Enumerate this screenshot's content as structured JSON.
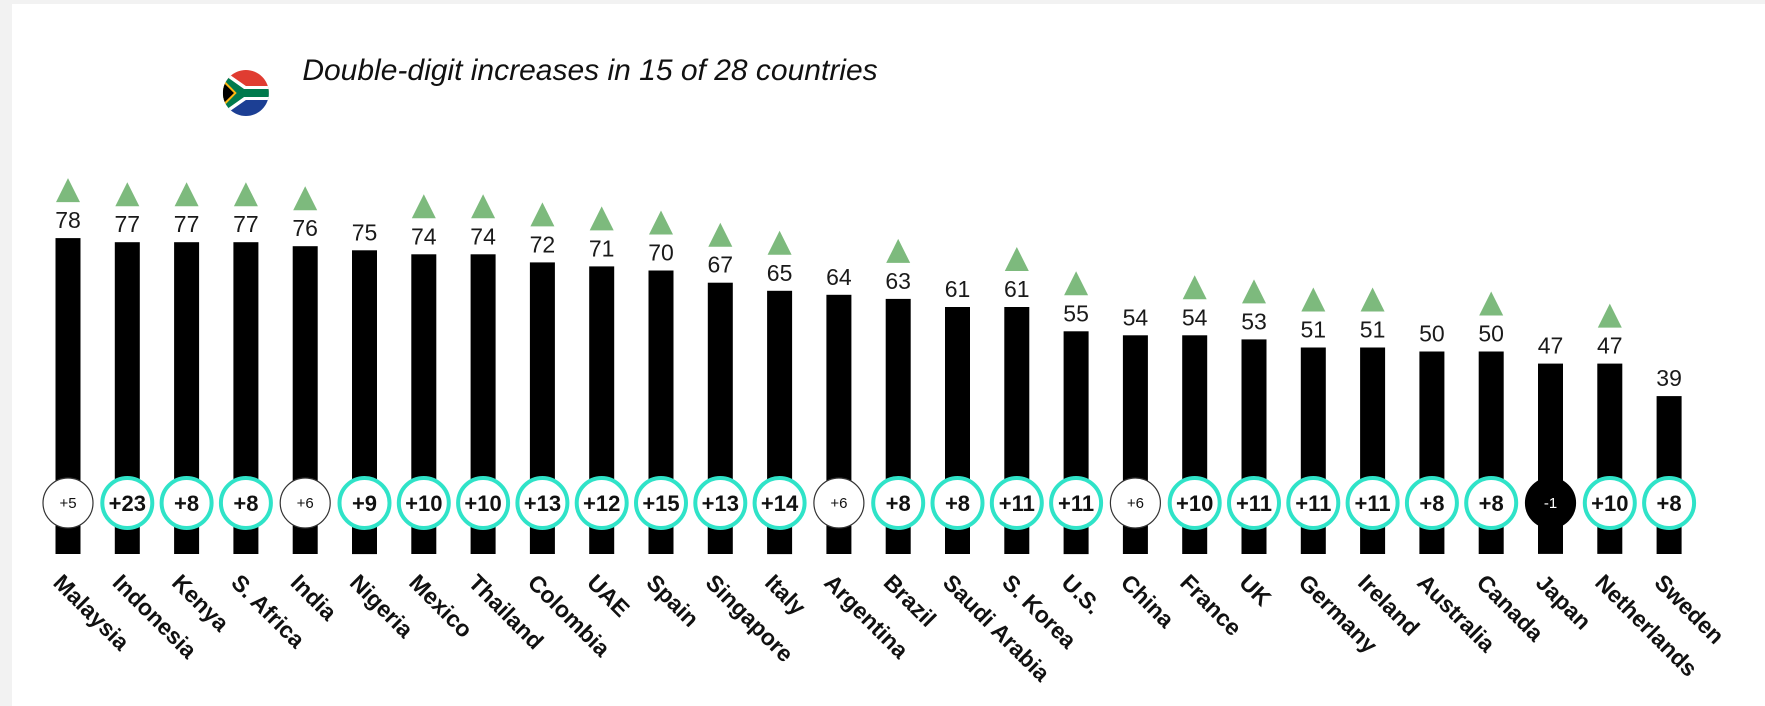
{
  "chart_data": {
    "type": "bar",
    "title": "Double-digit increases in 15 of 28 countries",
    "xlabel": "",
    "ylabel": "",
    "ylim": [
      0,
      90
    ],
    "grid": false,
    "legend": "none",
    "categories": [
      "Malaysia",
      "Indonesia",
      "Kenya",
      "S. Africa",
      "India",
      "Nigeria",
      "Mexico",
      "Thailand",
      "Colombia",
      "UAE",
      "Spain",
      "Singapore",
      "Italy",
      "Argentina",
      "Brazil",
      "Saudi Arabia",
      "S. Korea",
      "U.S.",
      "China",
      "France",
      "UK",
      "Germany",
      "Ireland",
      "Australia",
      "Canada",
      "Japan",
      "Netherlands",
      "Sweden"
    ],
    "values": [
      78,
      77,
      77,
      77,
      76,
      75,
      74,
      74,
      72,
      71,
      70,
      67,
      65,
      64,
      63,
      61,
      61,
      55,
      54,
      54,
      53,
      51,
      51,
      50,
      50,
      47,
      47,
      39
    ],
    "changes": [
      "+5",
      "+23",
      "+8",
      "+8",
      "+6",
      "+9",
      "+10",
      "+10",
      "+13",
      "+12",
      "+15",
      "+13",
      "+14",
      "+6",
      "+8",
      "+8",
      "+11",
      "+11",
      "+6",
      "+10",
      "+11",
      "+11",
      "+11",
      "+8",
      "+8",
      "-1",
      "+10",
      "+8"
    ],
    "significant_increase": [
      true,
      true,
      true,
      true,
      true,
      false,
      true,
      true,
      true,
      true,
      true,
      true,
      true,
      false,
      true,
      false,
      true,
      true,
      false,
      true,
      true,
      true,
      true,
      false,
      true,
      false,
      true,
      false
    ],
    "change_style": [
      "plain",
      "significant",
      "significant",
      "significant",
      "plain",
      "significant",
      "significant",
      "significant",
      "significant",
      "significant",
      "significant",
      "significant",
      "significant",
      "plain",
      "significant",
      "significant",
      "significant",
      "significant",
      "plain",
      "significant",
      "significant",
      "significant",
      "significant",
      "significant",
      "significant",
      "decline",
      "significant",
      "significant"
    ],
    "highlight": {
      "category": "S. Africa",
      "marker": "south-africa-flag-icon"
    },
    "colors": {
      "bar": "#000000",
      "arrow": "#7dba7d",
      "significant_ring": "#2fe3c8",
      "plain_ring": "#333333",
      "decline_fill": "#000000",
      "text": "#1a1a1a"
    }
  }
}
